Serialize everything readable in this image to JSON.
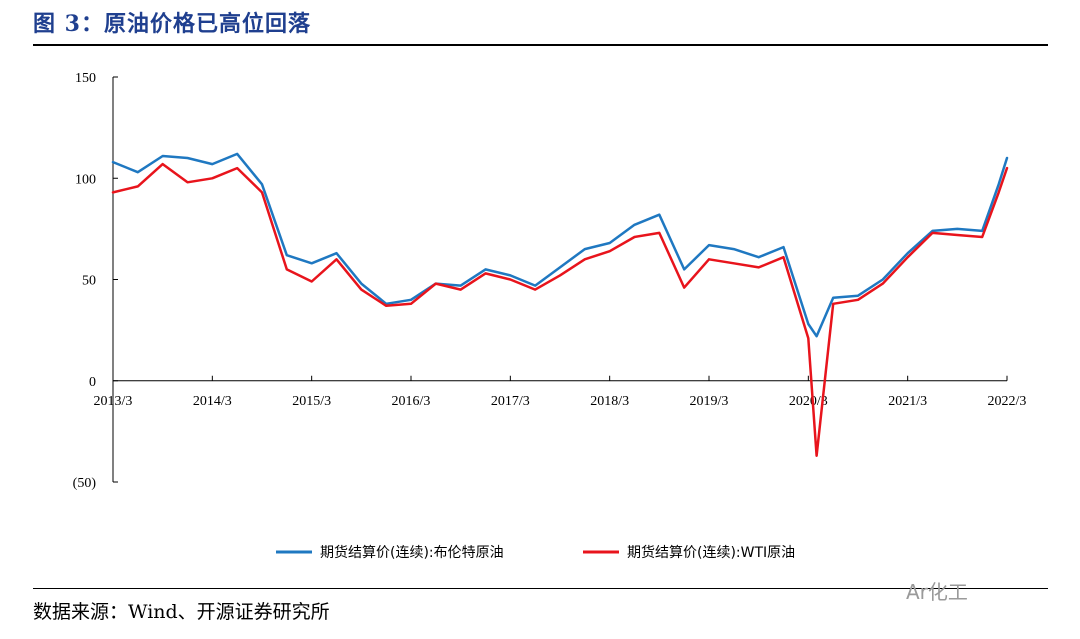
{
  "figure": {
    "title": "图 3：原油价格已高位回落",
    "source": "数据来源：Wind、开源证券研究所",
    "watermark": "Ar化工"
  },
  "colors": {
    "brent": "#1f78c1",
    "wti": "#e8141c",
    "negative_tick": "#d11a1a",
    "title": "#1f3f8f"
  },
  "chart_data": {
    "type": "line",
    "title": "",
    "xlabel": "",
    "ylabel": "",
    "ylim": [
      -50,
      150
    ],
    "yticks": [
      {
        "value": 150,
        "label": "150"
      },
      {
        "value": 100,
        "label": "100"
      },
      {
        "value": 50,
        "label": "50"
      },
      {
        "value": 0,
        "label": "0"
      },
      {
        "value": -50,
        "label": "(50)"
      }
    ],
    "xlim": [
      "2013-03",
      "2022-03"
    ],
    "xticks": [
      "2013/3",
      "2014/3",
      "2015/3",
      "2016/3",
      "2017/3",
      "2018/3",
      "2019/3",
      "2020/3",
      "2021/3",
      "2022/3"
    ],
    "grid": false,
    "legend_position": "bottom",
    "x": [
      "2013-03",
      "2013-06",
      "2013-09",
      "2013-12",
      "2014-03",
      "2014-06",
      "2014-09",
      "2014-12",
      "2015-03",
      "2015-06",
      "2015-09",
      "2015-12",
      "2016-03",
      "2016-06",
      "2016-09",
      "2016-12",
      "2017-03",
      "2017-06",
      "2017-09",
      "2017-12",
      "2018-03",
      "2018-06",
      "2018-09",
      "2018-12",
      "2019-03",
      "2019-06",
      "2019-09",
      "2019-12",
      "2020-03",
      "2020-04",
      "2020-06",
      "2020-09",
      "2020-12",
      "2021-03",
      "2021-06",
      "2021-09",
      "2021-12",
      "2022-02",
      "2022-03"
    ],
    "series": [
      {
        "name": "期货结算价(连续):布伦特原油",
        "values": [
          108,
          103,
          111,
          110,
          107,
          112,
          97,
          62,
          58,
          63,
          48,
          38,
          40,
          48,
          47,
          55,
          52,
          47,
          56,
          65,
          68,
          77,
          82,
          55,
          67,
          65,
          61,
          66,
          28,
          22,
          41,
          42,
          50,
          63,
          74,
          75,
          74,
          97,
          110
        ]
      },
      {
        "name": "期货结算价(连续):WTI原油",
        "values": [
          93,
          96,
          107,
          98,
          100,
          105,
          93,
          55,
          49,
          60,
          45,
          37,
          38,
          48,
          45,
          53,
          50,
          45,
          52,
          60,
          64,
          71,
          73,
          46,
          60,
          58,
          56,
          61,
          21,
          -37,
          38,
          40,
          48,
          61,
          73,
          72,
          71,
          93,
          105
        ]
      }
    ]
  }
}
